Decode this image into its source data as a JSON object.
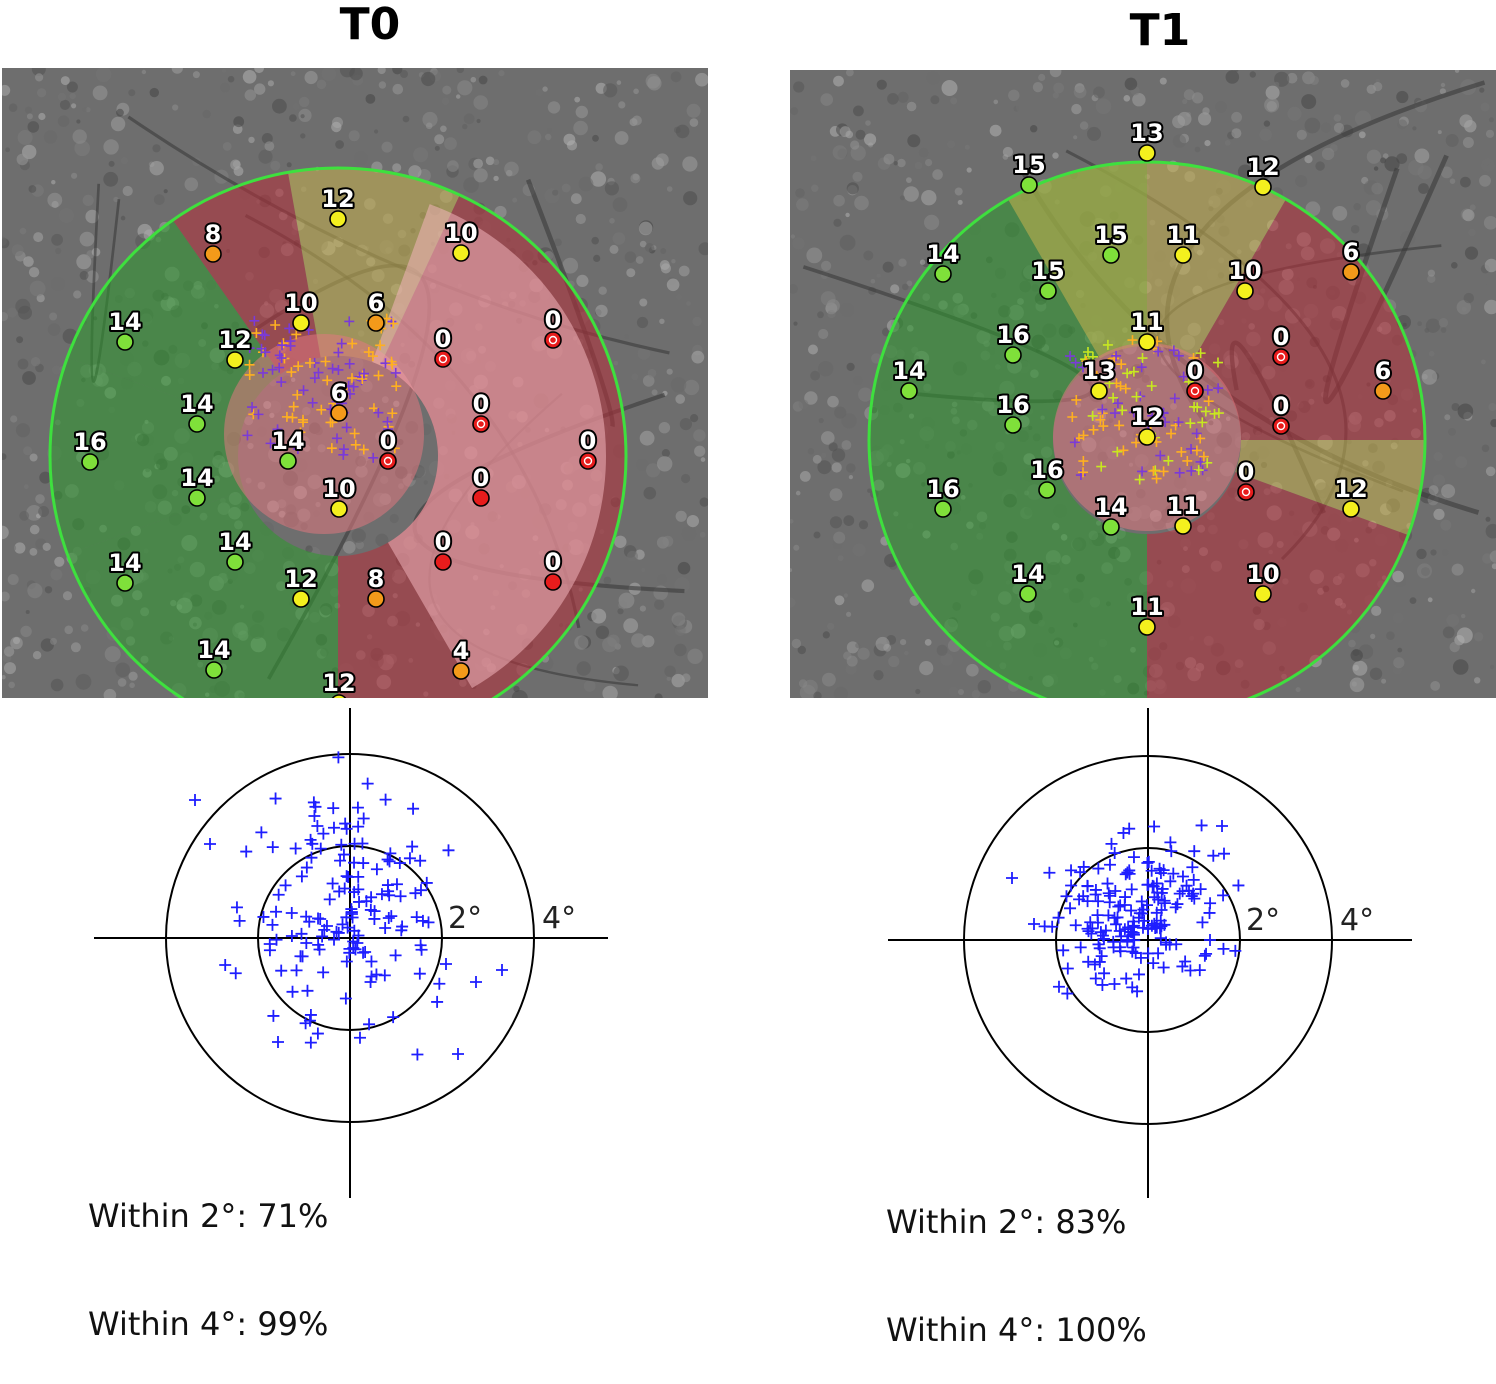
{
  "panels": [
    {
      "title": "T0",
      "fundus": {
        "points": [
          {
            "v": 12,
            "s": "yellow"
          },
          {
            "v": 8,
            "s": "orange"
          },
          {
            "v": 10,
            "s": "yellow"
          },
          {
            "v": 10,
            "s": "yellow"
          },
          {
            "v": 6,
            "s": "orange"
          },
          {
            "v": 14,
            "s": "green"
          },
          {
            "v": 12,
            "s": "yellow"
          },
          {
            "v": 0,
            "s": "red-ring"
          },
          {
            "v": 0,
            "s": "red-ring"
          },
          {
            "v": 14,
            "s": "green"
          },
          {
            "v": 6,
            "s": "orange"
          },
          {
            "v": 0,
            "s": "red-ring"
          },
          {
            "v": 16,
            "s": "green"
          },
          {
            "v": 14,
            "s": "green"
          },
          {
            "v": 0,
            "s": "red-ring"
          },
          {
            "v": 0,
            "s": "red-ring"
          },
          {
            "v": 14,
            "s": "green"
          },
          {
            "v": 10,
            "s": "yellow"
          },
          {
            "v": 0,
            "s": "red"
          },
          {
            "v": 14,
            "s": "green"
          },
          {
            "v": 0,
            "s": "red"
          },
          {
            "v": 14,
            "s": "green"
          },
          {
            "v": 12,
            "s": "yellow"
          },
          {
            "v": 8,
            "s": "orange"
          },
          {
            "v": 0,
            "s": "red"
          },
          {
            "v": 14,
            "s": "green"
          },
          {
            "v": 4,
            "s": "orange"
          },
          {
            "v": 12,
            "s": "yellow"
          }
        ]
      },
      "fixation": {
        "ring_labels": [
          "2°",
          "4°"
        ],
        "within_2_label": "Within 2°:",
        "within_2_value": "71%",
        "within_4_label": "Within 4°:",
        "within_4_value": "99%"
      }
    },
    {
      "title": "T1",
      "fundus": {
        "points": [
          {
            "v": 13,
            "s": "yellow"
          },
          {
            "v": 15,
            "s": "green"
          },
          {
            "v": 12,
            "s": "yellow"
          },
          {
            "v": 14,
            "s": "green"
          },
          {
            "v": 15,
            "s": "green"
          },
          {
            "v": 11,
            "s": "yellow"
          },
          {
            "v": 6,
            "s": "orange"
          },
          {
            "v": 15,
            "s": "green"
          },
          {
            "v": 10,
            "s": "yellow"
          },
          {
            "v": 16,
            "s": "green"
          },
          {
            "v": 11,
            "s": "yellow"
          },
          {
            "v": 0,
            "s": "red-ring"
          },
          {
            "v": 14,
            "s": "green"
          },
          {
            "v": 13,
            "s": "yellow"
          },
          {
            "v": 0,
            "s": "red-ring"
          },
          {
            "v": 6,
            "s": "orange"
          },
          {
            "v": 16,
            "s": "green"
          },
          {
            "v": 12,
            "s": "yellow"
          },
          {
            "v": 0,
            "s": "red-ring"
          },
          {
            "v": 16,
            "s": "green"
          },
          {
            "v": 0,
            "s": "red-ring"
          },
          {
            "v": 16,
            "s": "green"
          },
          {
            "v": 14,
            "s": "green"
          },
          {
            "v": 11,
            "s": "yellow"
          },
          {
            "v": 12,
            "s": "yellow"
          },
          {
            "v": 14,
            "s": "green"
          },
          {
            "v": 10,
            "s": "yellow"
          },
          {
            "v": 11,
            "s": "yellow"
          }
        ]
      },
      "fixation": {
        "ring_labels": [
          "2°",
          "4°"
        ],
        "within_2_label": "Within 2°:",
        "within_2_value": "83%",
        "within_4_label": "Within 4°:",
        "within_4_value": "100%"
      }
    }
  ],
  "colors": {
    "green": "#7fe03a",
    "yellow": "#f4f01e",
    "orange": "#f39a1a",
    "red": "#e81c1c",
    "fixation_cross": "#1e1eff",
    "orange_cross": "#ffb020",
    "purple_cross": "#7a3ad8",
    "sector_green": "#2e9a2e",
    "sector_yellow": "#c9b34e",
    "sector_red": "#b8303a",
    "grid_circle": "#3ee03e"
  }
}
